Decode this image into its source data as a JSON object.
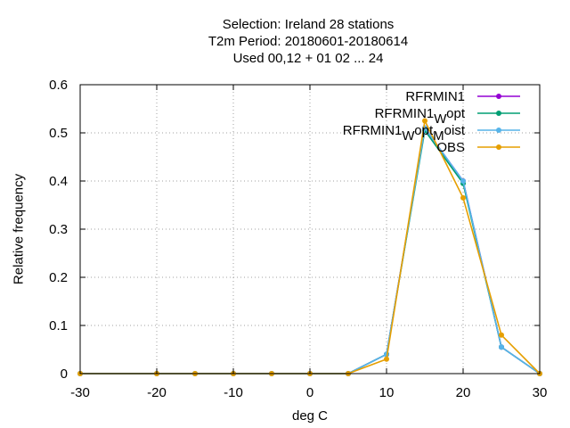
{
  "chart_data": {
    "type": "line",
    "title_lines": [
      "Selection: Ireland      28 stations",
      "T2m  Period: 20180601-20180614",
      "Used  00,12  + 01 02 ... 24"
    ],
    "xlabel": "deg C",
    "ylabel": "Relative frequency",
    "xlim": [
      -30,
      30
    ],
    "ylim": [
      0,
      0.6
    ],
    "x_ticks": [
      -30,
      -20,
      -10,
      0,
      10,
      20,
      30
    ],
    "y_ticks": [
      0,
      0.1,
      0.2,
      0.3,
      0.4,
      0.5,
      0.6
    ],
    "x_tick_labels": [
      "-30",
      "-20",
      "-10",
      "0",
      "10",
      "20",
      "30"
    ],
    "y_tick_labels": [
      "0",
      "0.1",
      "0.2",
      "0.3",
      "0.4",
      "0.5",
      "0.6"
    ],
    "grid": true,
    "legend_position": "top-right",
    "x": [
      -30,
      -20,
      -15,
      -10,
      -5,
      0,
      5,
      10,
      15,
      20,
      25,
      30
    ],
    "series": [
      {
        "name": "RFRMIN1",
        "legend_parts": [
          "RFRMIN1"
        ],
        "color": "#9400d3",
        "values": [
          0,
          0,
          0,
          0,
          0,
          0,
          0,
          0.04,
          0.51,
          0.4,
          0.055,
          0
        ]
      },
      {
        "name": "RFRMIN1_W opt",
        "legend_parts": [
          "RFRMIN1",
          "W",
          "opt"
        ],
        "color": "#009e73",
        "values": [
          0,
          0,
          0,
          0,
          0,
          0,
          0,
          0.04,
          0.505,
          0.395,
          0.055,
          0
        ]
      },
      {
        "name": "RFRMIN1_W opt_M oist",
        "legend_parts": [
          "RFRMIN1",
          "W",
          "opt",
          "M",
          "oist"
        ],
        "color": "#56b4e9",
        "values": [
          0,
          0,
          0,
          0,
          0,
          0,
          0,
          0.04,
          0.51,
          0.4,
          0.055,
          0
        ]
      },
      {
        "name": "OBS",
        "legend_parts": [
          "OBS"
        ],
        "color": "#e69f00",
        "values": [
          0,
          0,
          0,
          0,
          0,
          0,
          0,
          0.03,
          0.525,
          0.365,
          0.08,
          0
        ]
      }
    ]
  }
}
